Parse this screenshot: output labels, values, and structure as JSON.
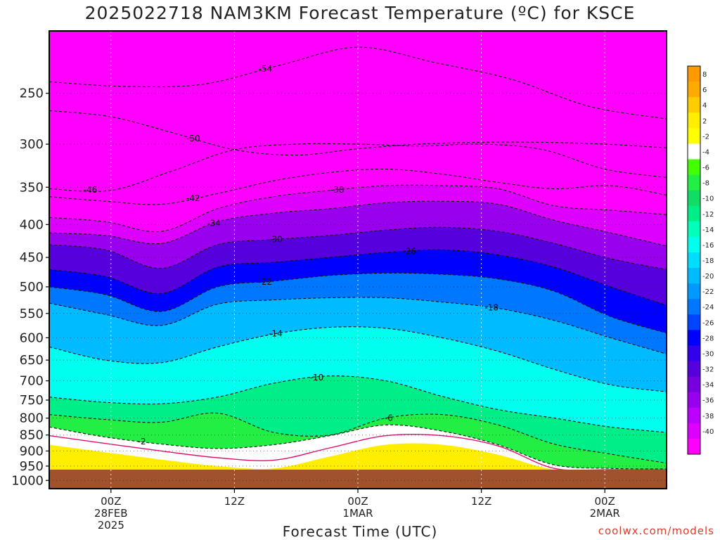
{
  "title": "2025022718 NAM3KM Forecast Temperature (ºC) for KSCE",
  "credit": "coolwx.com/models",
  "chart_data": {
    "type": "heatmap",
    "title": "2025022718 NAM3KM Forecast Temperature (ºC) for KSCE",
    "xlabel": "Forecast Time (UTC)",
    "ylabel": "",
    "x_ticks": [
      {
        "lines": [
          "00Z",
          "28FEB",
          "2025"
        ],
        "hour": 0
      },
      {
        "lines": [
          "12Z"
        ],
        "hour": 12
      },
      {
        "lines": [
          "00Z",
          "1MAR"
        ],
        "hour": 24
      },
      {
        "lines": [
          "12Z"
        ],
        "hour": 36
      },
      {
        "lines": [
          "00Z",
          "2MAR"
        ],
        "hour": 48
      }
    ],
    "x_range_hours": [
      -6,
      54
    ],
    "y_ticks": [
      250,
      300,
      350,
      400,
      450,
      500,
      550,
      600,
      650,
      700,
      750,
      800,
      850,
      900,
      950,
      1000
    ],
    "y_range_hpa": [
      200,
      1030
    ],
    "ground_level_hpa": 962,
    "colorbar": {
      "ticks": [
        8,
        6,
        4,
        2,
        -2,
        -4,
        -6,
        -8,
        -10,
        -12,
        -14,
        -16,
        -18,
        -20,
        -22,
        -24,
        -26,
        -28,
        -30,
        -32,
        -34,
        -36,
        -38,
        -40
      ],
      "colors": [
        "#ff9900",
        "#ffaa00",
        "#ffcc00",
        "#ffee00",
        "#ffff00",
        "#ffffff",
        "#44ff00",
        "#22ee44",
        "#11dd66",
        "#00ee88",
        "#00ffbb",
        "#00ffee",
        "#00ddff",
        "#00bbff",
        "#0099ff",
        "#0077ff",
        "#0044ff",
        "#0000ff",
        "#3300ee",
        "#5500dd",
        "#7700dd",
        "#9900ee",
        "#bb00ff",
        "#dd00ff",
        "#ff00ff"
      ]
    },
    "isotherms": [
      {
        "label": "-54",
        "hpa": [
          240,
          244,
          242,
          226,
          212,
          224,
          238,
          262,
          274
        ],
        "label_hour": 15
      },
      {
        "label": "-50",
        "hpa": [
          266,
          272,
          288,
          306,
          312,
          305,
          300,
          298,
          298,
          300,
          304
        ],
        "label_hour": 8
      },
      {
        "label": "-46",
        "hpa": [
          352,
          354,
          330,
          306,
          300,
          300,
          302,
          300,
          306,
          328,
          338
        ],
        "label_hour": -2
      },
      {
        "label": "-42",
        "hpa": [
          362,
          368,
          372,
          358,
          342,
          332,
          328,
          334,
          344,
          352,
          348,
          360
        ],
        "label_hour": 8
      },
      {
        "label": "-38",
        "hpa": [
          390,
          396,
          410,
          378,
          362,
          354,
          348,
          348,
          352,
          374,
          380,
          386
        ],
        "label_hour": 22
      },
      {
        "label": "-34",
        "hpa": [
          412,
          416,
          428,
          396,
          384,
          378,
          370,
          368,
          372,
          394,
          412,
          432
        ],
        "label_hour": 10
      },
      {
        "label": "-30",
        "hpa": [
          430,
          438,
          468,
          430,
          422,
          416,
          408,
          404,
          410,
          428,
          452,
          470
        ],
        "label_hour": 16
      },
      {
        "label": "-26",
        "hpa": [
          470,
          482,
          512,
          466,
          458,
          450,
          442,
          438,
          446,
          466,
          500,
          534
        ],
        "label_hour": 29
      },
      {
        "label": "-22",
        "hpa": [
          500,
          514,
          546,
          500,
          490,
          480,
          476,
          478,
          486,
          508,
          556,
          590
        ],
        "label_hour": 15
      },
      {
        "label": "-18",
        "hpa": [
          530,
          552,
          574,
          532,
          524,
          520,
          520,
          528,
          540,
          564,
          600,
          636
        ],
        "label_hour": 37
      },
      {
        "label": "-14",
        "hpa": [
          620,
          650,
          656,
          620,
          592,
          578,
          580,
          600,
          630,
          672,
          710,
          728
        ],
        "label_hour": 16
      },
      {
        "label": "-10",
        "hpa": [
          742,
          756,
          760,
          742,
          706,
          688,
          700,
          740,
          776,
          800,
          826,
          842
        ],
        "label_hour": 20
      },
      {
        "label": "-6",
        "hpa": [
          790,
          804,
          812,
          786,
          842,
          850,
          800,
          790,
          820,
          878,
          910,
          940
        ],
        "label_hour": 27
      },
      {
        "label": "-2",
        "hpa": [
          826,
          856,
          878,
          892,
          880,
          852,
          820,
          838,
          880,
          946,
          958,
          960
        ],
        "label_hour": 3
      }
    ],
    "freezing_line_hpa": [
      852,
      876,
      900,
      922,
      930,
      890,
      852,
      852,
      884,
      958,
      962,
      962
    ]
  }
}
